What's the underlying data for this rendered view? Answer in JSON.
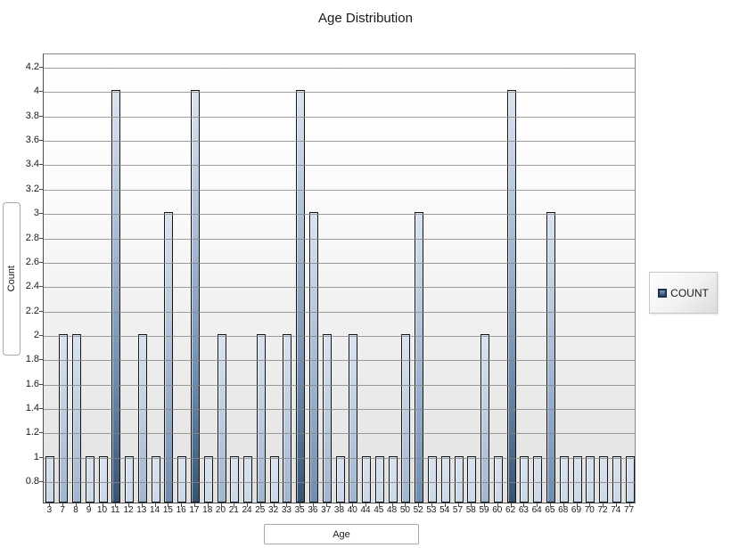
{
  "title": "Age Distribution",
  "axes": {
    "x_title": "Age",
    "y_title": "Count"
  },
  "legend": {
    "label": "COUNT",
    "swatch_fill": "#4a6d96",
    "swatch_border": "#1e3048"
  },
  "colors": {
    "bar_top": "#dae4f0",
    "bar_bottom": "#35526f",
    "bar_border": "#141414",
    "gridline": "#848484",
    "plot_bg_top": "#ffffff",
    "plot_bg_bottom": "#e1e1e1"
  },
  "chart_data": {
    "type": "bar",
    "title": "Age Distribution",
    "xlabel": "Age",
    "ylabel": "Count",
    "legend_entries": [
      "COUNT"
    ],
    "legend_position": "right",
    "grid": true,
    "categories": [
      3,
      7,
      8,
      9,
      10,
      11,
      12,
      13,
      14,
      15,
      16,
      17,
      18,
      20,
      21,
      24,
      25,
      32,
      33,
      35,
      36,
      37,
      38,
      40,
      44,
      45,
      48,
      50,
      52,
      53,
      54,
      57,
      58,
      59,
      60,
      62,
      63,
      64,
      65,
      68,
      69,
      70,
      72,
      74,
      77
    ],
    "values": [
      1,
      2,
      2,
      1,
      1,
      4,
      1,
      2,
      1,
      3,
      1,
      4,
      1,
      2,
      1,
      1,
      2,
      1,
      2,
      4,
      3,
      2,
      1,
      2,
      1,
      1,
      1,
      2,
      3,
      1,
      1,
      1,
      1,
      2,
      1,
      4,
      1,
      1,
      3,
      1,
      1,
      1,
      1,
      1,
      1
    ],
    "y_ticks": [
      0.8,
      1,
      1.2,
      1.4,
      1.6,
      1.8,
      2,
      2.2,
      2.4,
      2.6,
      2.8,
      3,
      3.2,
      3.4,
      3.6,
      3.8,
      4,
      4.2
    ],
    "ylim": [
      0.617,
      4.31
    ]
  }
}
